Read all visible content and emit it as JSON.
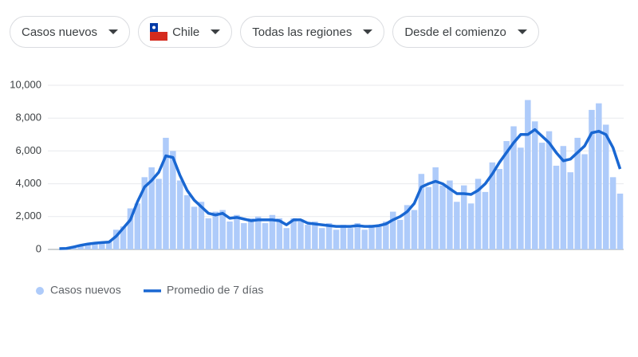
{
  "filters": [
    "Casos nuevos",
    "Chile",
    "Todas las regiones",
    "Desde el comienzo"
  ],
  "chart_data": {
    "type": "bar",
    "categories": [
      null,
      null,
      null,
      null,
      null,
      null,
      null,
      null,
      null,
      null,
      null,
      null,
      null,
      null,
      null,
      null,
      null,
      null,
      null,
      null,
      null,
      null,
      null,
      null,
      null,
      null,
      null,
      null,
      null,
      null,
      null,
      null,
      null,
      null,
      null,
      null,
      null,
      null,
      null,
      null,
      null,
      null,
      null,
      null,
      null,
      null,
      null,
      null,
      null,
      null,
      null,
      null,
      null,
      null,
      null,
      null,
      null,
      null,
      null,
      null,
      null,
      null,
      null,
      null,
      null,
      null,
      null,
      null,
      null,
      null,
      null,
      null,
      null,
      null,
      null,
      null,
      null,
      null,
      null,
      null
    ],
    "series": [
      {
        "name": "Casos nuevos",
        "type": "bar",
        "color": "#aecbfa",
        "values": [
          0,
          80,
          200,
          300,
          350,
          400,
          450,
          500,
          1200,
          1400,
          2500,
          2800,
          4400,
          5000,
          4300,
          6800,
          6000,
          4200,
          3300,
          2600,
          2900,
          1900,
          2300,
          2400,
          1700,
          2100,
          1600,
          1900,
          2000,
          1600,
          2100,
          1900,
          1300,
          1900,
          1700,
          1500,
          1700,
          1300,
          1600,
          1200,
          1500,
          1300,
          1600,
          1200,
          1500,
          1400,
          1700,
          2300,
          1800,
          2700,
          2400,
          4600,
          3800,
          5000,
          3900,
          4200,
          2900,
          3900,
          2800,
          4300,
          3500,
          5300,
          4900,
          6600,
          7500,
          6200,
          9100,
          7800,
          6500,
          7200,
          5100,
          6300,
          4700,
          6800,
          5800,
          8500,
          8900,
          7600,
          4400,
          3400
        ]
      },
      {
        "name": "Promedio de 7 días",
        "type": "line",
        "color": "#1967d2",
        "values": [
          50,
          60,
          150,
          250,
          330,
          380,
          420,
          450,
          800,
          1300,
          1800,
          2900,
          3800,
          4200,
          4700,
          5700,
          5600,
          4500,
          3600,
          3000,
          2600,
          2200,
          2100,
          2200,
          1900,
          1950,
          1850,
          1750,
          1800,
          1800,
          1800,
          1750,
          1500,
          1800,
          1800,
          1600,
          1550,
          1500,
          1450,
          1400,
          1400,
          1400,
          1450,
          1400,
          1400,
          1450,
          1550,
          1800,
          2000,
          2300,
          2800,
          3800,
          4000,
          4150,
          4000,
          3700,
          3400,
          3400,
          3350,
          3600,
          4000,
          4600,
          5300,
          5900,
          6500,
          7000,
          7000,
          7300,
          6900,
          6500,
          5900,
          5400,
          5500,
          5900,
          6300,
          7100,
          7200,
          7000,
          6200,
          4900
        ]
      }
    ],
    "ylim": [
      0,
      10000
    ],
    "yticks": [
      0,
      {
        "value": 2000,
        "label": "2,000"
      },
      {
        "value": 4000,
        "label": "4,000"
      },
      {
        "value": 6000,
        "label": "6,000"
      },
      {
        "value": 8000,
        "label": "8,000"
      },
      {
        "value": 10000,
        "label": "10,000"
      }
    ],
    "grid": true
  }
}
